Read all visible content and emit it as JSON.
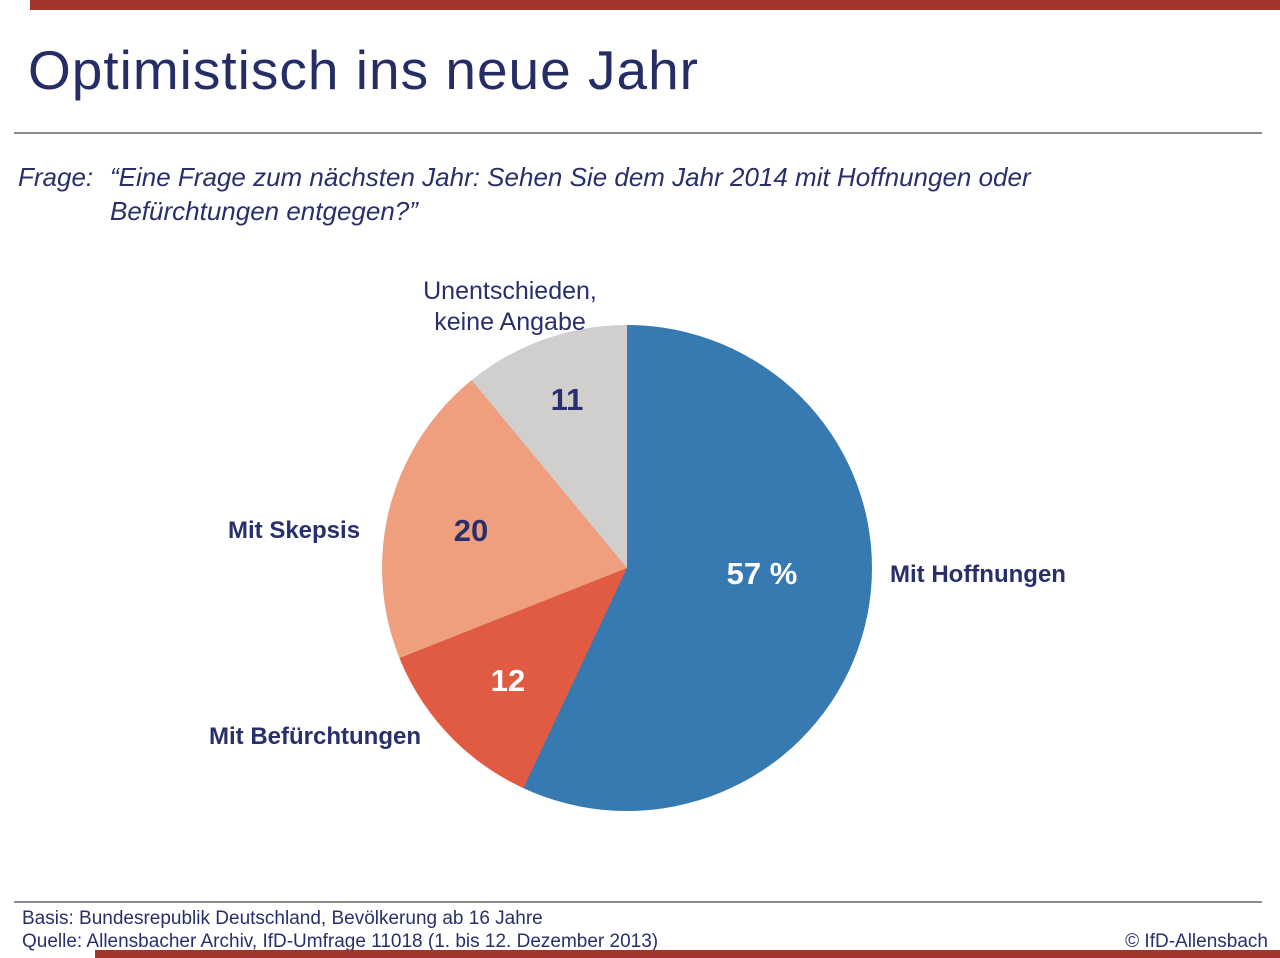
{
  "page": {
    "title": "Optimistisch ins neue Jahr",
    "accent_color": "#a3352b",
    "text_color": "#28306c"
  },
  "question": {
    "label": "Frage:",
    "text": "“Eine Frage zum nächsten Jahr: Sehen Sie dem Jahr 2014 mit Hoffnungen oder Befürchtungen entgegen?”"
  },
  "chart_data": {
    "type": "pie",
    "title": "Optimistisch ins neue Jahr",
    "unit": "percent",
    "start_angle_deg": 0,
    "direction": "clockwise",
    "legend_position": "around-slices",
    "slices": [
      {
        "label": "Mit Hoffnungen",
        "value": 57,
        "display_value": "57 %",
        "color": "#3779b1",
        "value_label_style": "light"
      },
      {
        "label": "Mit Befürchtungen",
        "value": 12,
        "display_value": "12",
        "color": "#e15a42",
        "value_label_style": "light"
      },
      {
        "label": "Mit Skepsis",
        "value": 20,
        "display_value": "20",
        "color": "#ef9f7e",
        "value_label_style": "dark"
      },
      {
        "label": "Unentschieden,\nkeine Angabe",
        "value": 11,
        "display_value": "11",
        "color": "#d0cfce",
        "value_label_style": "dark"
      }
    ]
  },
  "footer": {
    "basis": "Basis: Bundesrepublik Deutschland, Bevölkerung ab 16 Jahre",
    "quelle": "Quelle: Allensbacher Archiv, IfD-Umfrage 11018 (1. bis 12. Dezember 2013)",
    "copyright": "© IfD-Allensbach"
  }
}
